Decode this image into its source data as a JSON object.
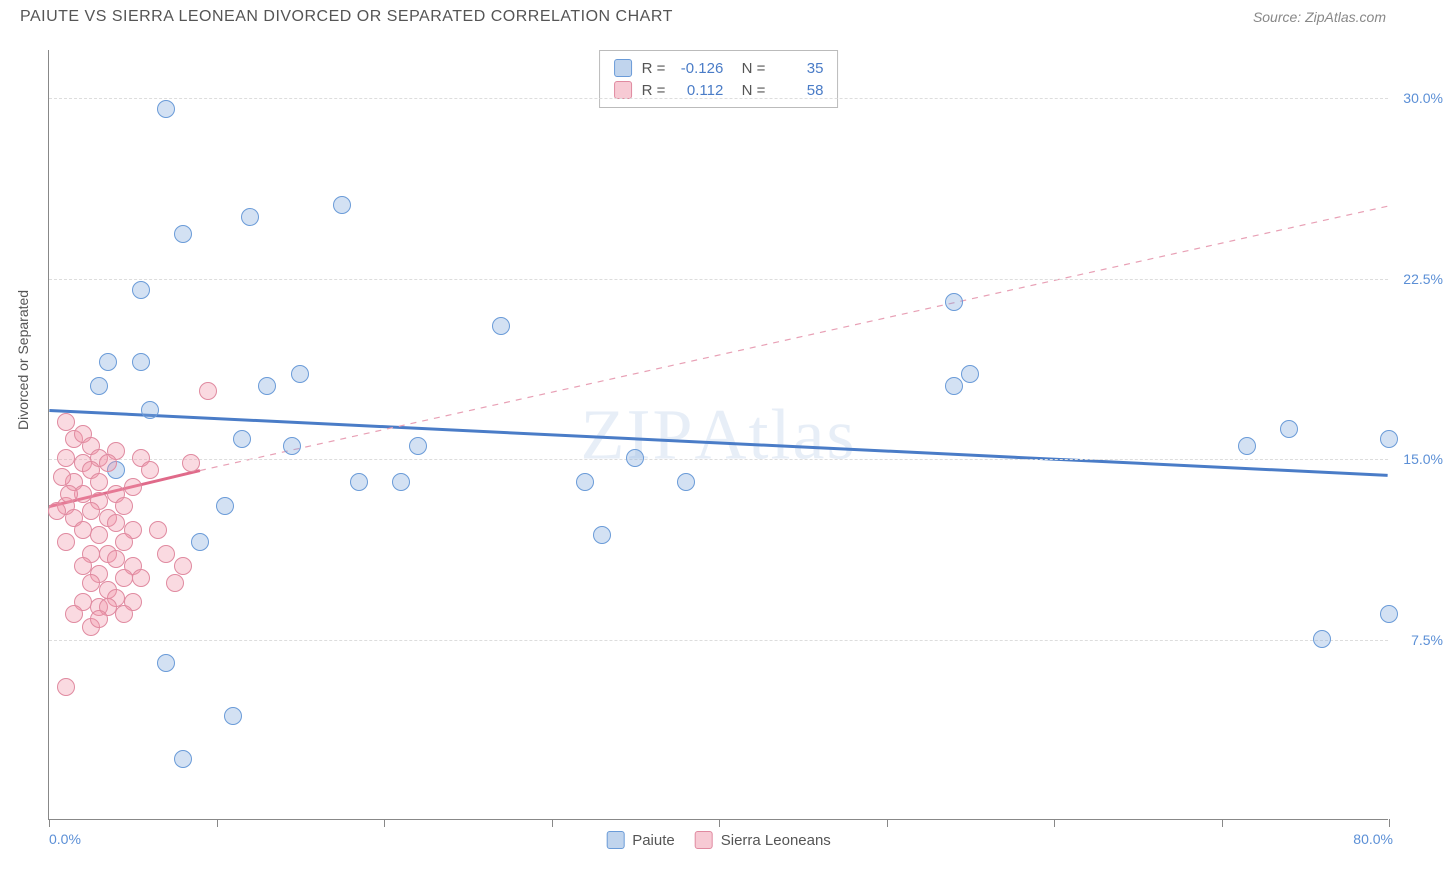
{
  "title": "PAIUTE VS SIERRA LEONEAN DIVORCED OR SEPARATED CORRELATION CHART",
  "source": "Source: ZipAtlas.com",
  "watermark": "ZIPAtlas",
  "chart": {
    "type": "scatter",
    "y_axis_title": "Divorced or Separated",
    "xlim": [
      0,
      80
    ],
    "ylim": [
      0,
      32
    ],
    "x_min_label": "0.0%",
    "x_max_label": "80.0%",
    "y_ticks": [
      7.5,
      15.0,
      22.5,
      30.0
    ],
    "y_tick_labels": [
      "7.5%",
      "15.0%",
      "22.5%",
      "30.0%"
    ],
    "x_tick_positions": [
      0,
      10,
      20,
      30,
      40,
      50,
      60,
      70,
      80
    ],
    "background_color": "#ffffff",
    "grid_color": "#dddddd",
    "axis_color": "#888888",
    "label_color": "#5b8fd6",
    "series": [
      {
        "name": "Paiute",
        "color_fill": "rgba(130,170,220,0.35)",
        "color_stroke": "#6a9bd8",
        "R": "-0.126",
        "N": "35",
        "trend": {
          "x1": 0,
          "y1": 17.0,
          "x2": 80,
          "y2": 14.3,
          "solid": true,
          "extra_dashed": false
        },
        "points": [
          [
            7.0,
            29.5
          ],
          [
            12.0,
            25.0
          ],
          [
            8.0,
            24.3
          ],
          [
            17.5,
            25.5
          ],
          [
            5.5,
            22.0
          ],
          [
            27.0,
            20.5
          ],
          [
            54.0,
            21.5
          ],
          [
            74.0,
            16.2
          ],
          [
            80.0,
            15.8
          ],
          [
            71.5,
            15.5
          ],
          [
            55.0,
            18.5
          ],
          [
            54.0,
            18.0
          ],
          [
            3.5,
            19.0
          ],
          [
            5.5,
            19.0
          ],
          [
            3.0,
            18.0
          ],
          [
            15.0,
            18.5
          ],
          [
            11.5,
            15.8
          ],
          [
            22.0,
            15.5
          ],
          [
            21.0,
            14.0
          ],
          [
            18.5,
            14.0
          ],
          [
            10.5,
            13.0
          ],
          [
            9.0,
            11.5
          ],
          [
            7.0,
            6.5
          ],
          [
            11.0,
            4.3
          ],
          [
            8.0,
            2.5
          ],
          [
            32.0,
            14.0
          ],
          [
            33.0,
            11.8
          ],
          [
            76.0,
            7.5
          ],
          [
            80.0,
            8.5
          ],
          [
            4.0,
            14.5
          ],
          [
            14.5,
            15.5
          ],
          [
            35.0,
            15.0
          ],
          [
            38.0,
            14.0
          ],
          [
            6.0,
            17.0
          ],
          [
            13.0,
            18.0
          ]
        ]
      },
      {
        "name": "Sierra Leoneans",
        "color_fill": "rgba(240,150,170,0.35)",
        "color_stroke": "#e08aa0",
        "R": "0.112",
        "N": "58",
        "trend": {
          "x1": 0,
          "y1": 13.0,
          "x2": 9,
          "y2": 14.5,
          "solid": true,
          "extra_dashed": true,
          "dash_x2": 80,
          "dash_y2": 25.5
        },
        "points": [
          [
            1.0,
            16.5
          ],
          [
            1.5,
            15.8
          ],
          [
            2.0,
            16.0
          ],
          [
            1.0,
            15.0
          ],
          [
            2.5,
            15.5
          ],
          [
            2.0,
            14.8
          ],
          [
            3.0,
            15.0
          ],
          [
            1.5,
            14.0
          ],
          [
            2.5,
            14.5
          ],
          [
            3.0,
            14.0
          ],
          [
            4.0,
            15.3
          ],
          [
            3.5,
            14.8
          ],
          [
            2.0,
            13.5
          ],
          [
            1.0,
            13.0
          ],
          [
            3.0,
            13.2
          ],
          [
            4.0,
            13.5
          ],
          [
            2.5,
            12.8
          ],
          [
            1.5,
            12.5
          ],
          [
            3.5,
            12.5
          ],
          [
            4.5,
            13.0
          ],
          [
            5.0,
            13.8
          ],
          [
            4.0,
            12.3
          ],
          [
            2.0,
            12.0
          ],
          [
            3.0,
            11.8
          ],
          [
            1.0,
            11.5
          ],
          [
            5.5,
            15.0
          ],
          [
            6.0,
            14.5
          ],
          [
            5.0,
            12.0
          ],
          [
            4.5,
            11.5
          ],
          [
            3.5,
            11.0
          ],
          [
            2.5,
            11.0
          ],
          [
            2.0,
            10.5
          ],
          [
            4.0,
            10.8
          ],
          [
            5.0,
            10.5
          ],
          [
            3.0,
            10.2
          ],
          [
            4.5,
            10.0
          ],
          [
            2.5,
            9.8
          ],
          [
            3.5,
            9.5
          ],
          [
            5.5,
            10.0
          ],
          [
            4.0,
            9.2
          ],
          [
            2.0,
            9.0
          ],
          [
            3.0,
            8.8
          ],
          [
            5.0,
            9.0
          ],
          [
            4.5,
            8.5
          ],
          [
            3.5,
            8.8
          ],
          [
            8.5,
            14.8
          ],
          [
            8.0,
            10.5
          ],
          [
            7.5,
            9.8
          ],
          [
            7.0,
            11.0
          ],
          [
            6.5,
            12.0
          ],
          [
            9.5,
            17.8
          ],
          [
            1.5,
            8.5
          ],
          [
            2.5,
            8.0
          ],
          [
            3.0,
            8.3
          ],
          [
            1.0,
            5.5
          ],
          [
            0.8,
            14.2
          ],
          [
            1.2,
            13.5
          ],
          [
            0.5,
            12.8
          ]
        ]
      }
    ],
    "legend_bottom": [
      {
        "swatch": "blue",
        "label": "Paiute"
      },
      {
        "swatch": "pink",
        "label": "Sierra Leoneans"
      }
    ]
  }
}
